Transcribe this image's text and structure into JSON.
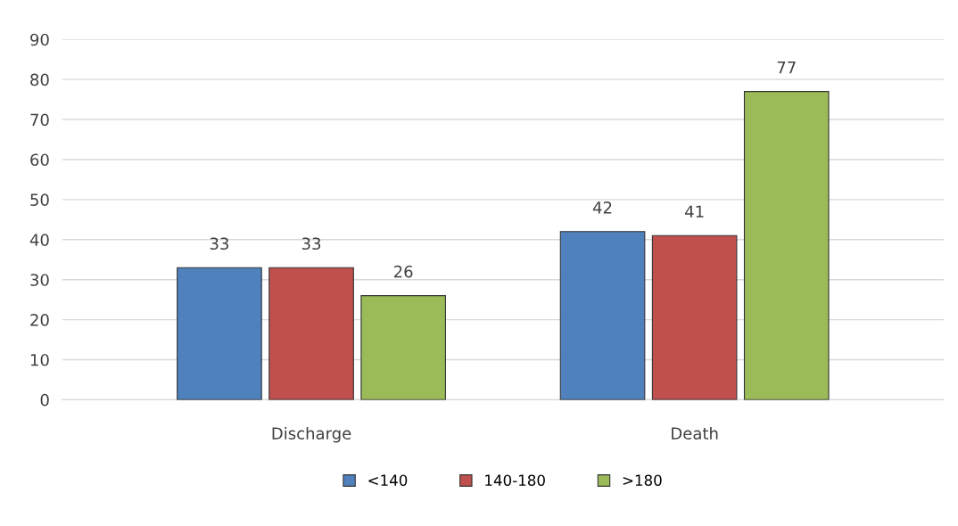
{
  "chart_data": {
    "type": "bar",
    "categories": [
      "Discharge",
      "Death"
    ],
    "series": [
      {
        "name": "<140",
        "color": "#4f81bd",
        "values": [
          33,
          42
        ]
      },
      {
        "name": "140-180",
        "color": "#c0504d",
        "values": [
          33,
          41
        ]
      },
      {
        "name": ">180",
        "color": "#9bbb59",
        "values": [
          26,
          77
        ]
      }
    ],
    "ylim": [
      0,
      90
    ],
    "yticks": [
      0,
      10,
      20,
      30,
      40,
      50,
      60,
      70,
      80,
      90
    ],
    "grid": "y",
    "legend": "bottom",
    "data_labels": true
  }
}
